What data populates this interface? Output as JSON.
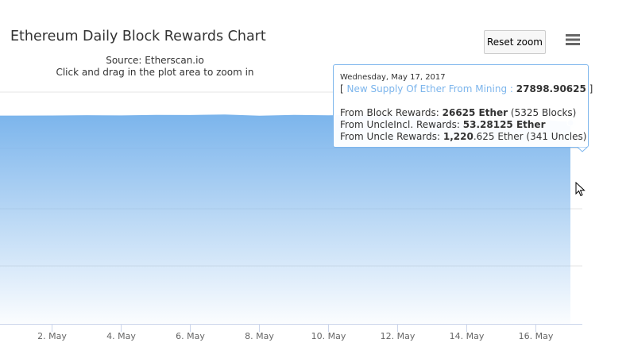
{
  "header": {
    "title": "Ethereum Daily Block Rewards Chart",
    "subtitle_line1": "Source: Etherscan.io",
    "subtitle_line2": "Click and drag in the plot area to zoom in"
  },
  "toolbar": {
    "reset_zoom_label": "Reset zoom",
    "menu_icon": "hamburger-menu-icon"
  },
  "tooltip": {
    "date": "Wednesday, May 17, 2017",
    "open_bracket": "[ ",
    "series_label": "New Supply Of Ether From Mining :",
    "supply_value": "27898.90625",
    "close_bracket": " ]",
    "block_prefix": "From Block Rewards: ",
    "block_value": "26625 Ether",
    "block_suffix": " (5325 Blocks)",
    "uncleincl_prefix": "From UncleIncl. Rewards: ",
    "uncleincl_value": "53.28125 Ether",
    "uncle_prefix": "From Uncle Rewards: ",
    "uncle_value_bold": "1,220",
    "uncle_value_rest": ".625 Ether (341 Uncles)"
  },
  "colors": {
    "series": "#7cb5ec",
    "grid": "#e6e6e6",
    "axis": "#ccd6eb",
    "tooltip_border": "#7cb5ec"
  },
  "chart_data": {
    "type": "area",
    "title": "Ethereum Daily Block Rewards Chart",
    "series": [
      {
        "name": "New Supply Of Ether From Mining",
        "x": [
          "2017-05-01",
          "2017-05-02",
          "2017-05-03",
          "2017-05-04",
          "2017-05-05",
          "2017-05-06",
          "2017-05-07",
          "2017-05-08",
          "2017-05-09",
          "2017-05-10",
          "2017-05-11",
          "2017-05-12",
          "2017-05-13",
          "2017-05-14",
          "2017-05-15",
          "2017-05-16",
          "2017-05-17"
        ],
        "values": [
          28800,
          28820,
          28860,
          28830,
          28890,
          28880,
          28960,
          28780,
          28900,
          28840,
          28920,
          28880,
          28560,
          28080,
          28200,
          28300,
          27898.90625
        ]
      }
    ],
    "x_tick_labels": [
      "2. May",
      "4. May",
      "6. May",
      "8. May",
      "10. May",
      "12. May",
      "14. May",
      "16. May"
    ],
    "x_tick_dates": [
      "2017-05-02",
      "2017-05-04",
      "2017-05-06",
      "2017-05-08",
      "2017-05-10",
      "2017-05-12",
      "2017-05-14",
      "2017-05-16"
    ],
    "highlighted_point": "2017-05-17",
    "grid": true,
    "legend": "none"
  }
}
